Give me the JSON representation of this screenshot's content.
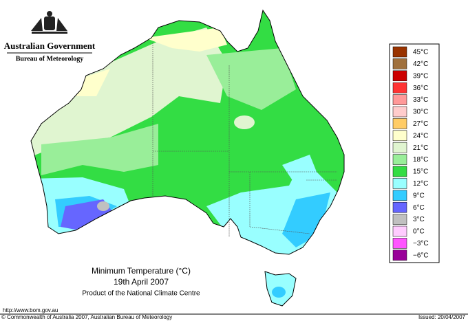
{
  "header": {
    "government": "Australian Government",
    "bureau": "Bureau of Meteorology"
  },
  "caption": {
    "title": "Minimum Temperature (°C)",
    "date": "19th April 2007",
    "product": "Product of the National Climate Centre"
  },
  "legend": {
    "items": [
      {
        "label": "45°C",
        "color": "#993300"
      },
      {
        "label": "42°C",
        "color": "#a0703c"
      },
      {
        "label": "39°C",
        "color": "#cc0000"
      },
      {
        "label": "36°C",
        "color": "#ff3333"
      },
      {
        "label": "33°C",
        "color": "#ff9999"
      },
      {
        "label": "30°C",
        "color": "#ffcccc"
      },
      {
        "label": "27°C",
        "color": "#ffcc66"
      },
      {
        "label": "24°C",
        "color": "#ffffcc"
      },
      {
        "label": "21°C",
        "color": "#e0f5d0"
      },
      {
        "label": "18°C",
        "color": "#99ee99"
      },
      {
        "label": "15°C",
        "color": "#33dd44"
      },
      {
        "label": "12°C",
        "color": "#99ffff"
      },
      {
        "label": "9°C",
        "color": "#33ccff"
      },
      {
        "label": "6°C",
        "color": "#6666ff"
      },
      {
        "label": "3°C",
        "color": "#c0c0c0"
      },
      {
        "label": "0°C",
        "color": "#ffccff"
      },
      {
        "label": "−3°C",
        "color": "#ff55ff"
      },
      {
        "label": "−6°C",
        "color": "#990099"
      }
    ]
  },
  "footer": {
    "url": "http://www.bom.gov.au",
    "copyright": "© Commonwealth of Australia 2007, Australian Bureau of Meteorology",
    "issued": "Issued: 20/04/2007"
  }
}
